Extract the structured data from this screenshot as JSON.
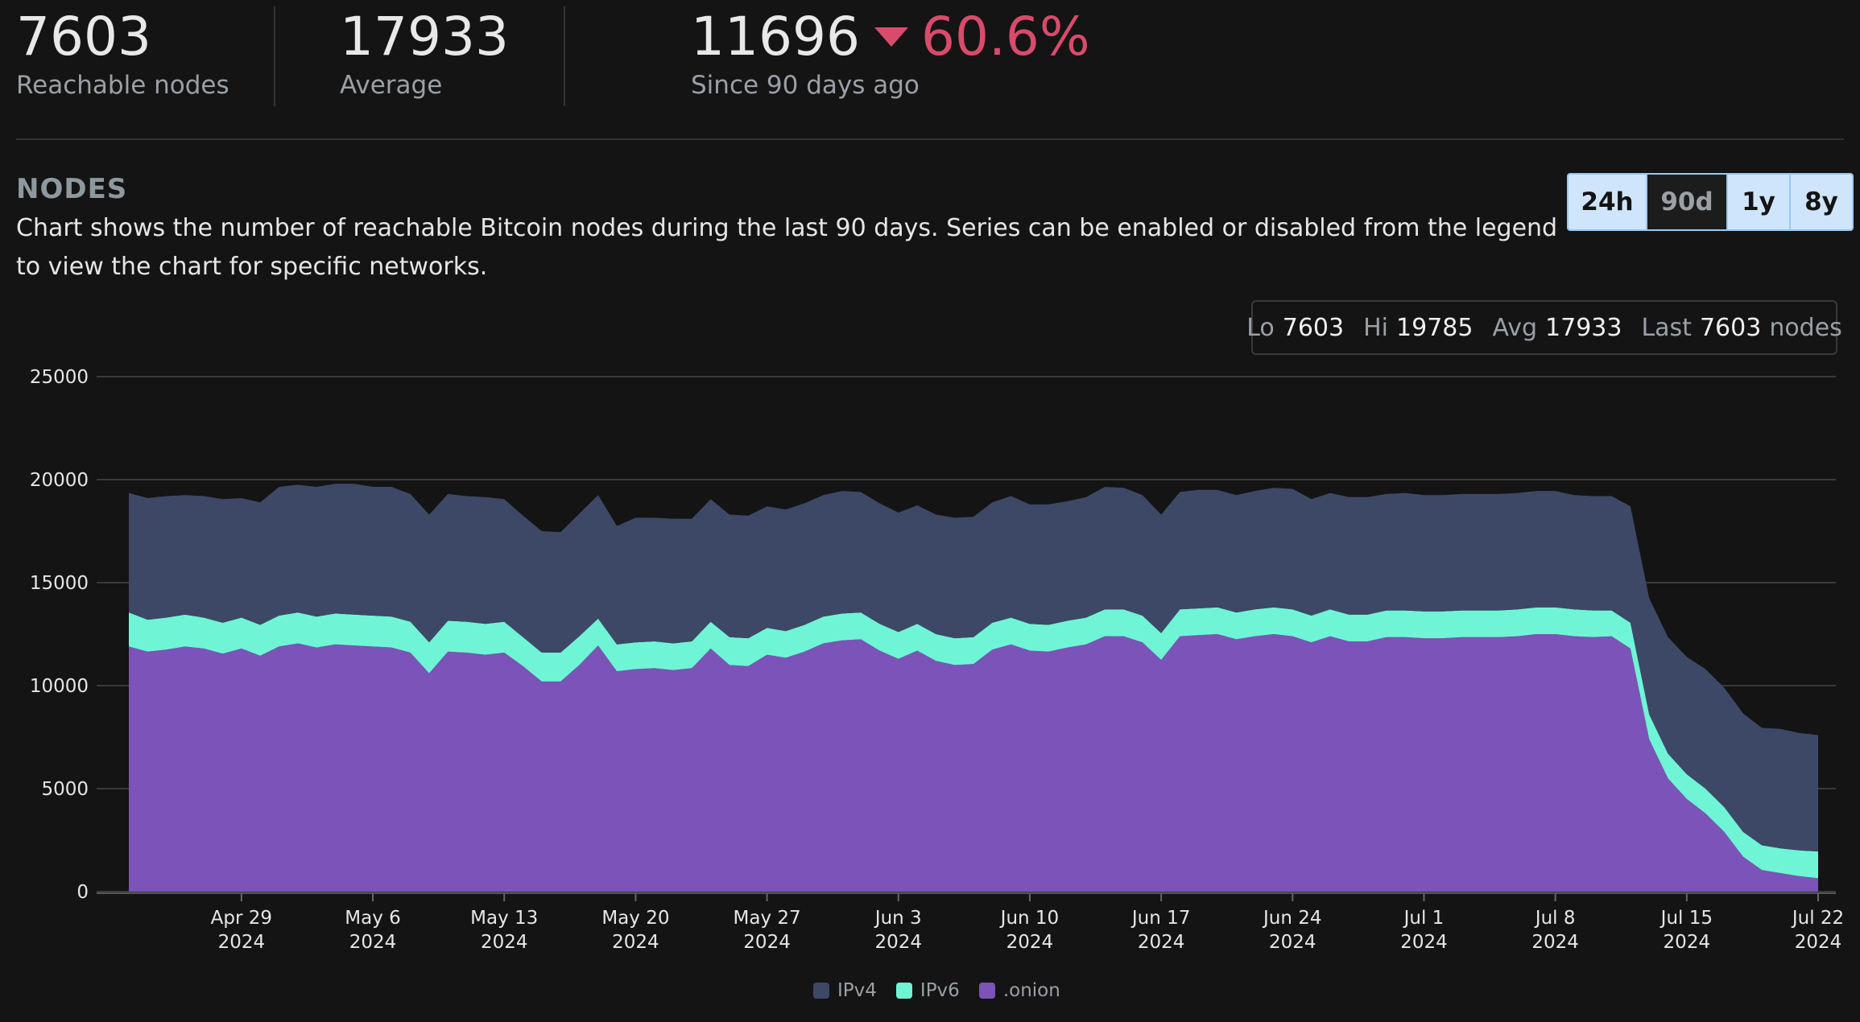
{
  "stats": {
    "reachable": {
      "value": "7603",
      "label": "Reachable nodes"
    },
    "average": {
      "value": "17933",
      "label": "Average"
    },
    "change": {
      "value": "11696",
      "percent": "60.6%",
      "direction": "down",
      "label": "Since 90 days ago"
    }
  },
  "section": {
    "title": "NODES",
    "description": "Chart shows the number of reachable Bitcoin nodes during the last 90 days. Series can be enabled or disabled from the legend to view the chart for specific networks."
  },
  "range_buttons": [
    {
      "label": "24h",
      "active": false
    },
    {
      "label": "90d",
      "active": true
    },
    {
      "label": "1y",
      "active": false
    },
    {
      "label": "8y",
      "active": false
    }
  ],
  "summary": {
    "lo_label": "Lo",
    "lo": "7603",
    "hi_label": "Hi",
    "hi": "19785",
    "avg_label": "Avg",
    "avg": "17933",
    "last_label": "Last",
    "last": "7603",
    "unit": "nodes"
  },
  "colors": {
    "ipv4": "#3d4866",
    "ipv6": "#6ff5d6",
    "onion": "#7c53b8",
    "down": "#d94b6b",
    "grid": "#3a3a3a"
  },
  "chart_data": {
    "type": "area",
    "stacked": true,
    "x": [
      "2024-04-23",
      "2024-04-24",
      "2024-04-25",
      "2024-04-26",
      "2024-04-27",
      "2024-04-28",
      "2024-04-29",
      "2024-04-30",
      "2024-05-01",
      "2024-05-02",
      "2024-05-03",
      "2024-05-04",
      "2024-05-05",
      "2024-05-06",
      "2024-05-07",
      "2024-05-08",
      "2024-05-09",
      "2024-05-10",
      "2024-05-11",
      "2024-05-12",
      "2024-05-13",
      "2024-05-14",
      "2024-05-15",
      "2024-05-16",
      "2024-05-17",
      "2024-05-18",
      "2024-05-19",
      "2024-05-20",
      "2024-05-21",
      "2024-05-22",
      "2024-05-23",
      "2024-05-24",
      "2024-05-25",
      "2024-05-26",
      "2024-05-27",
      "2024-05-28",
      "2024-05-29",
      "2024-05-30",
      "2024-05-31",
      "2024-06-01",
      "2024-06-02",
      "2024-06-03",
      "2024-06-04",
      "2024-06-05",
      "2024-06-06",
      "2024-06-07",
      "2024-06-08",
      "2024-06-09",
      "2024-06-10",
      "2024-06-11",
      "2024-06-12",
      "2024-06-13",
      "2024-06-14",
      "2024-06-15",
      "2024-06-16",
      "2024-06-17",
      "2024-06-18",
      "2024-06-19",
      "2024-06-20",
      "2024-06-21",
      "2024-06-22",
      "2024-06-23",
      "2024-06-24",
      "2024-06-25",
      "2024-06-26",
      "2024-06-27",
      "2024-06-28",
      "2024-06-29",
      "2024-06-30",
      "2024-07-01",
      "2024-07-02",
      "2024-07-03",
      "2024-07-04",
      "2024-07-05",
      "2024-07-06",
      "2024-07-07",
      "2024-07-08",
      "2024-07-09",
      "2024-07-10",
      "2024-07-11",
      "2024-07-12",
      "2024-07-13",
      "2024-07-14",
      "2024-07-15",
      "2024-07-16",
      "2024-07-17",
      "2024-07-18",
      "2024-07-19",
      "2024-07-20",
      "2024-07-21",
      "2024-07-22"
    ],
    "series": [
      {
        "name": ".onion",
        "values": [
          11900,
          11650,
          11750,
          11900,
          11800,
          11550,
          11800,
          11450,
          11900,
          12050,
          11850,
          12000,
          11950,
          11900,
          11850,
          11600,
          10600,
          11650,
          11600,
          11500,
          11600,
          10950,
          10200,
          10200,
          11000,
          11950,
          10700,
          10800,
          10850,
          10750,
          10850,
          11800,
          11000,
          10950,
          11500,
          11350,
          11650,
          12050,
          12200,
          12250,
          11700,
          11300,
          11700,
          11200,
          11000,
          11050,
          11750,
          12000,
          11700,
          11650,
          11850,
          12000,
          12400,
          12400,
          12100,
          11250,
          12400,
          12450,
          12500,
          12250,
          12400,
          12500,
          12400,
          12100,
          12400,
          12150,
          12150,
          12350,
          12350,
          12300,
          12300,
          12350,
          12350,
          12350,
          12400,
          12500,
          12500,
          12400,
          12350,
          12400,
          11800,
          7400,
          5500,
          4500,
          3800,
          2900,
          1700,
          1050,
          900,
          750,
          650
        ]
      },
      {
        "name": "IPv6",
        "values": [
          1650,
          1550,
          1550,
          1550,
          1500,
          1500,
          1500,
          1500,
          1500,
          1500,
          1500,
          1500,
          1500,
          1500,
          1500,
          1500,
          1500,
          1500,
          1500,
          1500,
          1500,
          1400,
          1400,
          1400,
          1400,
          1300,
          1300,
          1300,
          1300,
          1300,
          1300,
          1300,
          1350,
          1350,
          1300,
          1300,
          1300,
          1300,
          1300,
          1300,
          1300,
          1300,
          1300,
          1300,
          1300,
          1300,
          1300,
          1300,
          1300,
          1300,
          1300,
          1300,
          1300,
          1300,
          1300,
          1300,
          1300,
          1300,
          1300,
          1300,
          1300,
          1300,
          1300,
          1300,
          1300,
          1300,
          1300,
          1300,
          1300,
          1300,
          1300,
          1300,
          1300,
          1300,
          1300,
          1300,
          1300,
          1300,
          1300,
          1250,
          1250,
          1200,
          1200,
          1200,
          1200,
          1200,
          1200,
          1200,
          1200,
          1250,
          1300
        ]
      },
      {
        "name": "IPv4",
        "values": [
          5800,
          5900,
          5900,
          5800,
          5900,
          6000,
          5800,
          5950,
          6250,
          6200,
          6300,
          6300,
          6350,
          6250,
          6300,
          6200,
          6200,
          6150,
          6100,
          6150,
          5950,
          5900,
          5900,
          5850,
          5950,
          6000,
          5750,
          6050,
          6000,
          6050,
          5950,
          5950,
          5950,
          5950,
          5900,
          5900,
          5900,
          5900,
          5950,
          5850,
          5850,
          5800,
          5750,
          5800,
          5850,
          5850,
          5850,
          5900,
          5800,
          5850,
          5800,
          5850,
          5950,
          5900,
          5850,
          5750,
          5700,
          5750,
          5700,
          5700,
          5750,
          5800,
          5850,
          5650,
          5650,
          5700,
          5700,
          5650,
          5700,
          5650,
          5650,
          5650,
          5650,
          5650,
          5650,
          5650,
          5650,
          5550,
          5550,
          5550,
          5650,
          5650,
          5650,
          5700,
          5800,
          5800,
          5750,
          5700,
          5800,
          5700,
          5653
        ]
      }
    ],
    "ylim": [
      0,
      25000
    ],
    "yticks": [
      0,
      5000,
      10000,
      15000,
      20000,
      25000
    ],
    "xticks": [
      {
        "date": "2024-04-29",
        "label": "Apr 29",
        "year": "2024"
      },
      {
        "date": "2024-05-06",
        "label": "May 6",
        "year": "2024"
      },
      {
        "date": "2024-05-13",
        "label": "May 13",
        "year": "2024"
      },
      {
        "date": "2024-05-20",
        "label": "May 20",
        "year": "2024"
      },
      {
        "date": "2024-05-27",
        "label": "May 27",
        "year": "2024"
      },
      {
        "date": "2024-06-03",
        "label": "Jun 3",
        "year": "2024"
      },
      {
        "date": "2024-06-10",
        "label": "Jun 10",
        "year": "2024"
      },
      {
        "date": "2024-06-17",
        "label": "Jun 17",
        "year": "2024"
      },
      {
        "date": "2024-06-24",
        "label": "Jun 24",
        "year": "2024"
      },
      {
        "date": "2024-07-01",
        "label": "Jul 1",
        "year": "2024"
      },
      {
        "date": "2024-07-08",
        "label": "Jul 8",
        "year": "2024"
      },
      {
        "date": "2024-07-15",
        "label": "Jul 15",
        "year": "2024"
      },
      {
        "date": "2024-07-22",
        "label": "Jul 22",
        "year": "2024"
      }
    ],
    "grid": true,
    "legend": [
      {
        "name": "IPv4",
        "color": "#3d4866"
      },
      {
        "name": "IPv6",
        "color": "#6ff5d6"
      },
      {
        "name": ".onion",
        "color": "#7c53b8"
      }
    ],
    "legend_position": "bottom"
  }
}
